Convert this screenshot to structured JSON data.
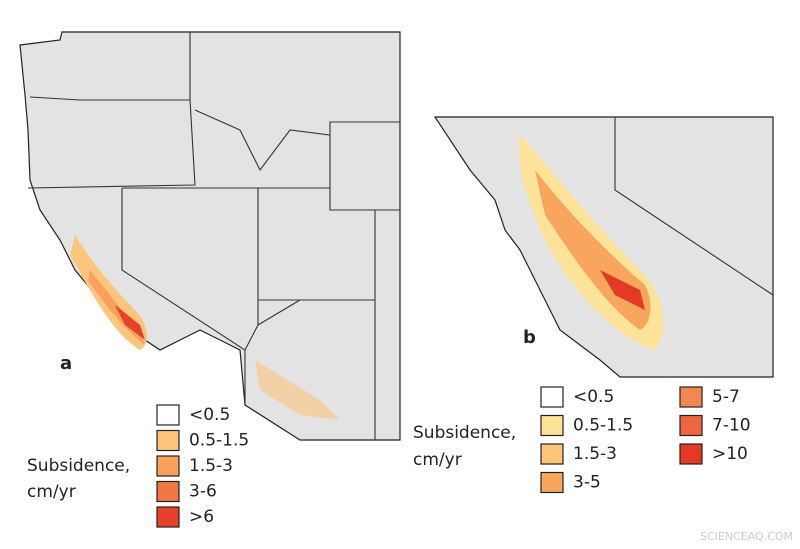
{
  "panels": [
    {
      "label": "a",
      "legend": {
        "title": [
          "Subsidence,",
          "cm/yr"
        ],
        "items": [
          {
            "label": "<0.5",
            "color": "#ffffff"
          },
          {
            "label": "0.5-1.5",
            "color": "#fbc57d"
          },
          {
            "label": "1.5-3",
            "color": "#f9a15b"
          },
          {
            "label": "3-6",
            "color": "#f07844"
          },
          {
            "label": ">6",
            "color": "#e8412b"
          }
        ]
      }
    },
    {
      "label": "b",
      "legend": {
        "title": [
          "Subsidence,",
          "cm/yr"
        ],
        "items": [
          {
            "label": "<0.5",
            "color": "#ffffff"
          },
          {
            "label": "0.5-1.5",
            "color": "#fde39a"
          },
          {
            "label": "1.5-3",
            "color": "#fbc67b"
          },
          {
            "label": "3-5",
            "color": "#f8a55e"
          },
          {
            "label": "5-7",
            "color": "#f4874f"
          },
          {
            "label": "7-10",
            "color": "#ee6540"
          },
          {
            "label": ">10",
            "color": "#e43a25"
          }
        ]
      }
    }
  ],
  "watermark": "SCIENCEAQ.COM"
}
